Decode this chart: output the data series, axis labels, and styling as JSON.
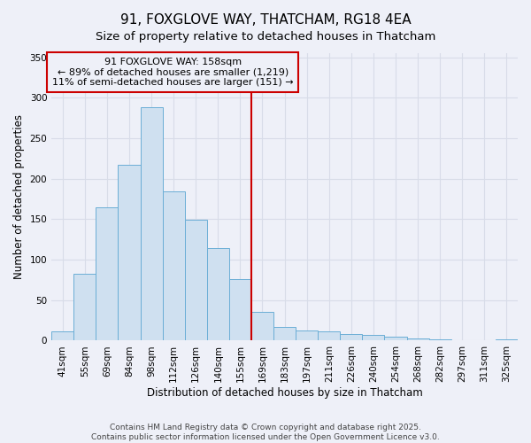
{
  "title": "91, FOXGLOVE WAY, THATCHAM, RG18 4EA",
  "subtitle": "Size of property relative to detached houses in Thatcham",
  "xlabel": "Distribution of detached houses by size in Thatcham",
  "ylabel": "Number of detached properties",
  "categories": [
    "41sqm",
    "55sqm",
    "69sqm",
    "84sqm",
    "98sqm",
    "112sqm",
    "126sqm",
    "140sqm",
    "155sqm",
    "169sqm",
    "183sqm",
    "197sqm",
    "211sqm",
    "226sqm",
    "240sqm",
    "254sqm",
    "268sqm",
    "282sqm",
    "297sqm",
    "311sqm",
    "325sqm"
  ],
  "values": [
    11,
    83,
    165,
    217,
    288,
    184,
    149,
    114,
    76,
    35,
    17,
    12,
    11,
    8,
    7,
    5,
    3,
    2,
    1,
    0,
    2
  ],
  "bar_color": "#cfe0f0",
  "bar_edge_color": "#6baed6",
  "vline_x_index": 8,
  "vline_color": "#cc0000",
  "annotation_title": "91 FOXGLOVE WAY: 158sqm",
  "annotation_line1": "← 89% of detached houses are smaller (1,219)",
  "annotation_line2": "11% of semi-detached houses are larger (151) →",
  "annotation_box_color": "#cc0000",
  "ylim": [
    0,
    355
  ],
  "yticks": [
    0,
    50,
    100,
    150,
    200,
    250,
    300,
    350
  ],
  "footer1": "Contains HM Land Registry data © Crown copyright and database right 2025.",
  "footer2": "Contains public sector information licensed under the Open Government Licence v3.0.",
  "bg_color": "#eef0f8",
  "grid_color": "#d8dce8",
  "title_fontsize": 11,
  "subtitle_fontsize": 9.5,
  "axis_label_fontsize": 8.5,
  "tick_fontsize": 7.5,
  "annotation_fontsize": 8,
  "footer_fontsize": 6.5
}
